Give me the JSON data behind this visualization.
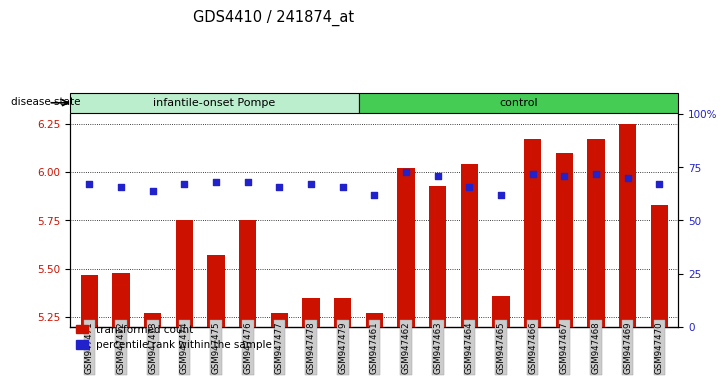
{
  "title": "GDS4410 / 241874_at",
  "samples": [
    "GSM947471",
    "GSM947472",
    "GSM947473",
    "GSM947474",
    "GSM947475",
    "GSM947476",
    "GSM947477",
    "GSM947478",
    "GSM947479",
    "GSM947461",
    "GSM947462",
    "GSM947463",
    "GSM947464",
    "GSM947465",
    "GSM947466",
    "GSM947467",
    "GSM947468",
    "GSM947469",
    "GSM947470"
  ],
  "bar_values": [
    5.47,
    5.48,
    5.27,
    5.75,
    5.57,
    5.75,
    5.27,
    5.35,
    5.35,
    5.27,
    6.02,
    5.93,
    6.04,
    5.36,
    6.17,
    6.1,
    6.17,
    6.25,
    5.83
  ],
  "dot_pct": [
    67,
    66,
    64,
    67,
    68,
    68,
    66,
    67,
    66,
    62,
    73,
    71,
    66,
    62,
    72,
    71,
    72,
    70,
    67
  ],
  "group1_count": 9,
  "group1_label": "infantile-onset Pompe",
  "group2_label": "control",
  "ylim_left": [
    5.2,
    6.3
  ],
  "ylim_right": [
    0,
    100
  ],
  "yticks_left": [
    5.25,
    5.5,
    5.75,
    6.0,
    6.25
  ],
  "yticks_right": [
    0,
    25,
    50,
    75,
    100
  ],
  "bar_color": "#cc1100",
  "dot_color": "#2222cc",
  "group1_bg": "#bbeecc",
  "group2_bg": "#44cc55"
}
